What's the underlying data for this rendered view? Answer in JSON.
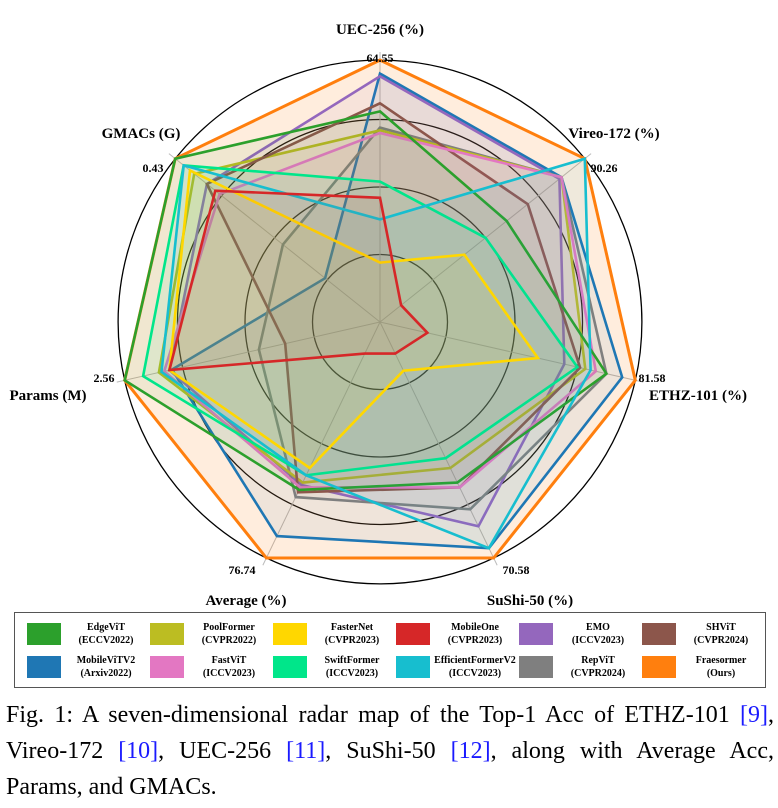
{
  "chart_data": {
    "type": "radar",
    "axes": [
      {
        "name": "UEC-256 (%)",
        "max_label": "64.55"
      },
      {
        "name": "Vireo-172 (%)",
        "max_label": "90.26"
      },
      {
        "name": "ETHZ-101 (%)",
        "max_label": "81.58"
      },
      {
        "name": "SuShi-50 (%)",
        "max_label": "70.58"
      },
      {
        "name": "Average (%)",
        "max_label": "76.74"
      },
      {
        "name": "Params (M)",
        "max_label": "2.56"
      },
      {
        "name": "GMACs (G)",
        "max_label": "0.43"
      }
    ],
    "value_scale": "normalized fraction of outer ring per axis",
    "rings": [
      0.25,
      0.5,
      0.75,
      0.97
    ],
    "series": [
      {
        "name": "EdgeViT",
        "venue": "(ECCV2022)",
        "color": "#2ca02c",
        "values": [
          0.78,
          0.6,
          0.86,
          0.66,
          0.69,
          0.97,
          0.97
        ]
      },
      {
        "name": "PoolFormer",
        "venue": "(CVPR2022)",
        "color": "#bcbd22",
        "values": [
          0.71,
          0.86,
          0.78,
          0.6,
          0.66,
          0.84,
          0.88
        ]
      },
      {
        "name": "FasterNet",
        "venue": "(CVPR2023)",
        "color": "#ffd700",
        "values": [
          0.22,
          0.4,
          0.6,
          0.2,
          0.6,
          0.8,
          0.9
        ]
      },
      {
        "name": "MobileOne",
        "venue": "(CVPR2023)",
        "color": "#d62728",
        "values": [
          0.46,
          0.1,
          0.18,
          0.13,
          0.13,
          0.8,
          0.78
        ]
      },
      {
        "name": "EMO",
        "venue": "(ICCV2023)",
        "color": "#9467bd",
        "values": [
          0.91,
          0.85,
          0.7,
          0.84,
          0.67,
          0.8,
          0.82
        ]
      },
      {
        "name": "SHViT",
        "venue": "(CVPR2024)",
        "color": "#8c564b",
        "values": [
          0.81,
          0.7,
          0.76,
          0.68,
          0.7,
          0.36,
          0.82
        ]
      },
      {
        "name": "MobileViTV2",
        "venue": "(Arxiv2022)",
        "color": "#1f77b4",
        "values": [
          0.92,
          0.86,
          0.92,
          0.93,
          0.88,
          0.79,
          0.26
        ]
      },
      {
        "name": "FastViT",
        "venue": "(ICCV2023)",
        "color": "#e377c2",
        "values": [
          0.7,
          0.86,
          0.82,
          0.68,
          0.68,
          0.82,
          0.76
        ]
      },
      {
        "name": "SwiftFormer",
        "venue": "(ICCV2023)",
        "color": "#00e68a",
        "values": [
          0.52,
          0.5,
          0.75,
          0.56,
          0.63,
          0.9,
          0.93
        ]
      },
      {
        "name": "EfficientFormerV2",
        "venue": "(ICCV2023)",
        "color": "#17becf",
        "values": [
          0.38,
          0.97,
          0.8,
          0.93,
          0.63,
          0.83,
          0.93
        ]
      },
      {
        "name": "RepViT",
        "venue": "(CVPR2024)",
        "color": "#7f7f7f",
        "values": [
          0.72,
          0.86,
          0.86,
          0.77,
          0.72,
          0.46,
          0.46
        ]
      },
      {
        "name": "Fraesormer",
        "venue": "(Ours)",
        "color": "#ff7f0e",
        "values": [
          0.97,
          0.97,
          0.97,
          0.97,
          0.97,
          0.97,
          0.97
        ]
      }
    ]
  },
  "legend": {
    "order": [
      "EdgeViT",
      "PoolFormer",
      "FasterNet",
      "MobileOne",
      "EMO",
      "SHViT",
      "MobileViTV2",
      "FastViT",
      "SwiftFormer",
      "EfficientFormerV2",
      "RepViT",
      "Fraesormer"
    ]
  },
  "caption": {
    "part1": "Fig. 1: A seven-dimensional radar map of the Top-1 Acc of ETHZ-101 ",
    "ref1": "[9]",
    "part2": ", Vireo-172 ",
    "ref2": "[10]",
    "part3": ", UEC-256 ",
    "ref3": "[11]",
    "part4": ", SuShi-50 ",
    "ref4": "[12]",
    "part5": ", along with Average Acc, Params, and GMACs."
  }
}
